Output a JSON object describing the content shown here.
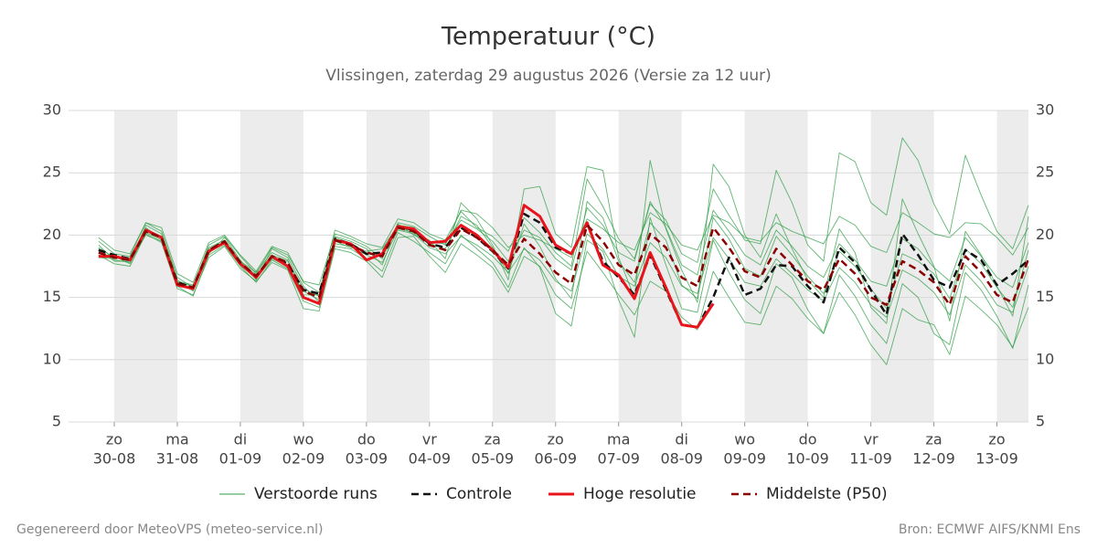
{
  "chart_data": {
    "type": "line",
    "title": "Temperatuur (°C)",
    "subtitle": "Vlissingen, zaterdag 29 augustus 2026 (Versie za 12 uur)",
    "footer_left": "Gegenereerd door MeteoVPS (meteo-service.nl)",
    "footer_right": "Bron: ECMWF AIFS/KNMI Ens",
    "x": [
      -6,
      0,
      6,
      12,
      18,
      24,
      30,
      36,
      42,
      48,
      54,
      60,
      66,
      72,
      78,
      84,
      90,
      96,
      102,
      108,
      114,
      120,
      126,
      132,
      138,
      144,
      150,
      156,
      162,
      168,
      174,
      180,
      186,
      192,
      198,
      204,
      210,
      216,
      222,
      228,
      234,
      240,
      246,
      252,
      258,
      264,
      270,
      276,
      282,
      288,
      294,
      300,
      306,
      312,
      318,
      324,
      330,
      336,
      342,
      348
    ],
    "xlim": [
      -17.4,
      348
    ],
    "xticks": [
      {
        "value": 0,
        "label": "zo",
        "date": "30-08"
      },
      {
        "value": 24,
        "label": "ma",
        "date": "31-08"
      },
      {
        "value": 48,
        "label": "di",
        "date": "01-09"
      },
      {
        "value": 72,
        "label": "wo",
        "date": "02-09"
      },
      {
        "value": 96,
        "label": "do",
        "date": "03-09"
      },
      {
        "value": 120,
        "label": "vr",
        "date": "04-09"
      },
      {
        "value": 144,
        "label": "za",
        "date": "05-09"
      },
      {
        "value": 168,
        "label": "zo",
        "date": "06-09"
      },
      {
        "value": 192,
        "label": "ma",
        "date": "07-09"
      },
      {
        "value": 216,
        "label": "di",
        "date": "08-09"
      },
      {
        "value": 240,
        "label": "wo",
        "date": "09-09"
      },
      {
        "value": 264,
        "label": "do",
        "date": "10-09"
      },
      {
        "value": 288,
        "label": "vr",
        "date": "11-09"
      },
      {
        "value": 312,
        "label": "za",
        "date": "12-09"
      },
      {
        "value": 336,
        "label": "zo",
        "date": "13-09"
      }
    ],
    "ylim": [
      5,
      30
    ],
    "yticks": [
      5,
      10,
      15,
      20,
      25,
      30
    ],
    "grid": true,
    "shade_alternate_days": true,
    "legend": "bottom",
    "series": [
      {
        "name": "Verstoorde runs",
        "color": "#2e9e44",
        "members": [
          [
            19.2,
            18.0,
            17.8,
            20.8,
            20.1,
            16.4,
            15.5,
            18.5,
            19.8,
            18.0,
            16.4,
            18.9,
            18.2,
            15.9,
            14.6,
            19.9,
            19.5,
            18.9,
            17.6,
            20.9,
            20.0,
            19.6,
            18.1,
            22.6,
            21.3,
            19.2,
            16.4,
            23.7,
            23.9,
            20.1,
            19.0,
            25.5,
            25.2,
            18.2,
            15.0,
            26.0,
            20.5,
            17.2,
            14.6,
            25.7,
            23.9,
            20.0,
            18.2,
            21.7,
            18.9,
            16.4,
            15.0,
            20.5,
            18.6,
            14.2,
            12.9,
            22.9,
            20.1,
            17.5,
            13.1,
            20.3,
            18.4,
            15.9,
            13.5,
            21.5
          ],
          [
            18.4,
            17.7,
            17.5,
            20.1,
            19.4,
            15.7,
            15.2,
            18.2,
            19.1,
            17.3,
            16.3,
            17.8,
            17.2,
            14.1,
            13.9,
            18.9,
            18.6,
            17.9,
            16.6,
            19.8,
            19.9,
            18.3,
            17.0,
            19.3,
            18.4,
            17.4,
            15.4,
            18.3,
            17.5,
            15.2,
            14.1,
            18.7,
            17.0,
            15.2,
            13.6,
            16.3,
            15.5,
            13.4,
            12.4,
            17.1,
            15.0,
            13.0,
            12.8,
            15.9,
            14.9,
            13.3,
            12.1,
            15.4,
            13.6,
            11.2,
            9.6,
            14.1,
            13.2,
            12.8,
            10.4,
            15.1,
            14.0,
            12.8,
            11.0,
            14.2
          ],
          [
            19.5,
            18.5,
            18.3,
            21.0,
            20.6,
            16.9,
            16.2,
            19.4,
            20.0,
            18.4,
            17.1,
            19.1,
            18.6,
            16.2,
            15.4,
            20.4,
            19.9,
            19.3,
            19.0,
            21.3,
            21.0,
            20.1,
            19.6,
            21.9,
            20.6,
            19.9,
            18.7,
            21.4,
            20.2,
            18.6,
            17.5,
            24.5,
            22.3,
            19.7,
            18.1,
            22.5,
            21.2,
            18.5,
            17.8,
            23.7,
            21.6,
            19.6,
            19.3,
            25.2,
            22.6,
            19.2,
            17.9,
            26.6,
            25.9,
            22.6,
            21.6,
            27.8,
            26.0,
            22.5,
            20.1,
            26.4,
            23.2,
            20.3,
            18.9,
            22.4
          ],
          [
            18.9,
            17.9,
            17.9,
            20.0,
            19.5,
            15.9,
            15.1,
            18.4,
            19.2,
            17.5,
            16.2,
            18.0,
            17.3,
            14.7,
            14.2,
            19.1,
            18.9,
            18.1,
            17.1,
            20.2,
            19.5,
            18.6,
            17.7,
            20.0,
            18.9,
            17.8,
            15.8,
            19.0,
            17.4,
            13.7,
            12.7,
            19.6,
            18.7,
            14.8,
            11.8,
            21.4,
            17.6,
            14.1,
            13.8,
            19.6,
            17.0,
            14.8,
            13.7,
            17.7,
            16.6,
            14.0,
            12.1,
            16.8,
            15.1,
            12.8,
            11.3,
            16.1,
            15.0,
            12.1,
            11.2,
            17.0,
            15.6,
            13.5,
            10.9,
            16.0
          ],
          [
            18.2,
            18.1,
            18.2,
            20.5,
            19.9,
            16.3,
            16.0,
            19.0,
            19.6,
            17.9,
            17.0,
            18.6,
            18.0,
            15.2,
            15.2,
            19.5,
            19.0,
            18.7,
            18.9,
            20.8,
            20.6,
            19.4,
            19.3,
            21.2,
            20.5,
            19.5,
            17.9,
            20.4,
            19.8,
            18.1,
            17.2,
            22.2,
            20.8,
            18.6,
            17.9,
            22.7,
            20.6,
            17.6,
            16.8,
            22.0,
            20.3,
            18.4,
            17.6,
            20.4,
            19.1,
            17.5,
            16.6,
            19.3,
            18.0,
            16.3,
            15.9,
            19.7,
            18.9,
            17.4,
            16.3,
            19.8,
            18.3,
            16.6,
            15.8,
            19.4
          ],
          [
            18.5,
            18.3,
            17.7,
            20.2,
            19.6,
            16.0,
            15.6,
            18.6,
            19.3,
            17.6,
            16.5,
            18.1,
            17.5,
            15.5,
            14.8,
            19.3,
            19.1,
            18.4,
            17.8,
            20.4,
            20.1,
            19.0,
            18.5,
            19.9,
            19.2,
            18.3,
            17.0,
            18.9,
            18.0,
            16.3,
            15.5,
            20.1,
            18.9,
            16.7,
            15.9,
            19.4,
            18.2,
            15.9,
            15.3,
            19.8,
            18.1,
            16.2,
            15.9,
            18.1,
            16.9,
            15.6,
            14.7,
            17.4,
            16.2,
            14.4,
            13.4,
            17.2,
            16.5,
            15.4,
            13.6,
            17.6,
            16.3,
            14.4,
            13.8,
            17.5
          ],
          [
            19.0,
            18.2,
            18.0,
            20.6,
            19.7,
            16.2,
            15.9,
            18.9,
            19.4,
            17.8,
            16.8,
            18.4,
            17.9,
            15.7,
            15.1,
            19.8,
            19.3,
            18.5,
            18.4,
            20.5,
            20.2,
            19.3,
            18.9,
            21.5,
            20.8,
            19.0,
            16.9,
            20.9,
            19.1,
            16.5,
            14.9,
            22.7,
            21.4,
            17.9,
            16.2,
            21.0,
            19.6,
            16.0,
            14.9,
            21.4,
            19.7,
            17.3,
            16.7,
            19.9,
            18.4,
            16.7,
            15.3,
            18.7,
            17.5,
            15.7,
            14.1,
            18.5,
            17.9,
            16.9,
            14.9,
            18.9,
            17.7,
            15.8,
            14.2,
            18.8
          ],
          [
            19.8,
            18.8,
            18.5,
            21.0,
            20.3,
            16.6,
            15.8,
            19.2,
            19.9,
            18.3,
            16.9,
            19.0,
            18.4,
            16.3,
            16.0,
            20.1,
            19.7,
            19.1,
            18.1,
            21.0,
            20.7,
            19.9,
            19.2,
            22.0,
            21.7,
            20.6,
            19.0,
            20.0,
            19.6,
            18.9,
            18.2,
            21.3,
            20.5,
            19.4,
            18.8,
            21.8,
            20.9,
            19.2,
            18.8,
            21.6,
            21.0,
            19.8,
            19.5,
            21.0,
            20.3,
            19.8,
            19.3,
            21.5,
            20.8,
            19.1,
            18.6,
            21.8,
            21.0,
            20.1,
            19.8,
            21.0,
            20.9,
            19.8,
            18.4,
            20.6
          ]
        ]
      },
      {
        "name": "Controle",
        "color": "#111111",
        "dashed": true,
        "values": [
          18.8,
          18.4,
          18.1,
          20.3,
          19.8,
          16.2,
          15.8,
          18.8,
          19.5,
          17.7,
          16.7,
          18.3,
          17.7,
          15.6,
          15.3,
          19.7,
          19.3,
          18.5,
          18.6,
          20.7,
          20.4,
          19.3,
          19.0,
          20.6,
          19.8,
          18.7,
          17.3,
          21.7,
          21.0,
          19.0,
          18.5,
          20.9,
          17.9,
          16.6,
          15.2,
          18.4,
          15.6,
          12.8,
          12.6,
          15.0,
          18.2,
          15.2,
          15.7,
          17.6,
          17.5,
          15.9,
          14.6,
          19.0,
          17.8,
          15.6,
          13.6,
          20.1,
          18.4,
          16.4,
          15.8,
          18.8,
          18.0,
          16.0,
          16.9,
          18.0
        ]
      },
      {
        "name": "Hoge resolutie",
        "color": "#e8141c",
        "values": [
          18.3,
          18.3,
          18.0,
          20.4,
          19.8,
          16.0,
          15.7,
          18.7,
          19.4,
          17.7,
          16.6,
          18.3,
          17.5,
          15.0,
          14.5,
          19.6,
          19.3,
          18.0,
          18.5,
          20.7,
          20.5,
          19.4,
          19.5,
          20.8,
          20.0,
          18.8,
          17.4,
          22.4,
          21.5,
          19.2,
          18.5,
          21.0,
          17.6,
          16.8,
          14.9,
          18.6,
          15.8,
          12.8,
          12.6,
          14.5,
          null,
          null,
          null,
          null,
          null,
          null,
          null,
          null,
          null,
          null,
          null,
          null,
          null,
          null,
          null,
          null,
          null,
          null,
          null,
          null
        ]
      },
      {
        "name": "Middelste (P50)",
        "color": "#8b0000",
        "dashed": true,
        "values": [
          18.6,
          18.2,
          18.0,
          20.3,
          19.8,
          16.1,
          15.8,
          18.8,
          19.5,
          17.8,
          16.7,
          18.3,
          17.8,
          15.5,
          15.0,
          19.6,
          19.2,
          18.6,
          18.3,
          20.6,
          20.3,
          19.2,
          18.8,
          20.5,
          19.8,
          18.8,
          17.6,
          19.7,
          18.5,
          17.0,
          16.1,
          20.8,
          19.5,
          17.6,
          16.8,
          20.1,
          19.0,
          16.6,
          15.9,
          20.6,
          19.0,
          17.1,
          16.6,
          18.9,
          17.6,
          16.3,
          15.6,
          18.1,
          16.9,
          15.0,
          14.4,
          17.9,
          17.2,
          16.2,
          14.4,
          18.3,
          17.0,
          15.2,
          14.6,
          18.1
        ]
      }
    ]
  }
}
